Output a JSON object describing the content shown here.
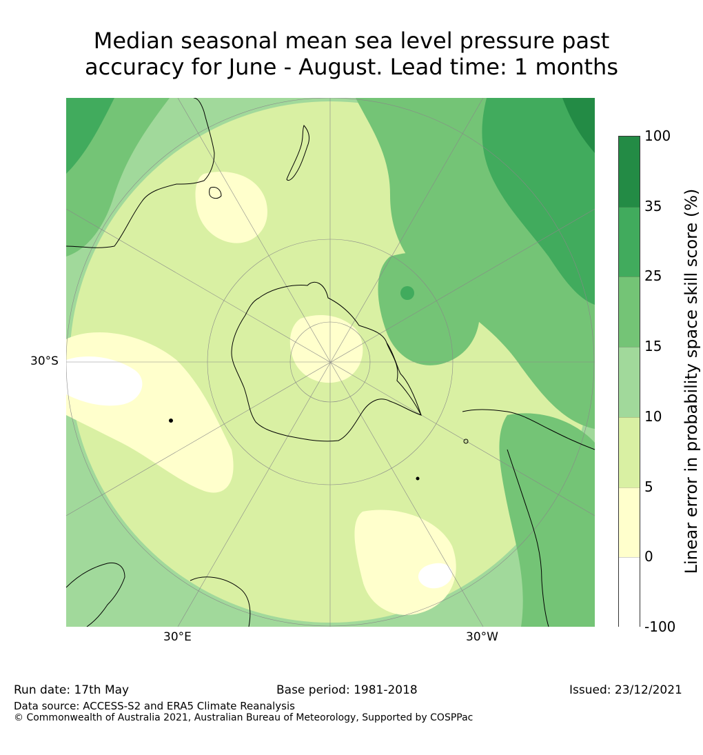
{
  "title": {
    "line1": "Median seasonal mean sea level pressure past",
    "line2": "accuracy for June - August. Lead time: 1 months"
  },
  "map": {
    "projection": "south polar stereographic",
    "lat_labels": [
      "30°S"
    ],
    "lon_labels": [
      "30°E",
      "30°W"
    ]
  },
  "colorbar": {
    "title": "Linear error in probability space skill score (%)",
    "ticks": [
      "100",
      "35",
      "25",
      "15",
      "10",
      "5",
      "0",
      "-100"
    ],
    "bins": [
      {
        "range": "35 to 100",
        "color": "#238b45"
      },
      {
        "range": "25 to 35",
        "color": "#41ab5d"
      },
      {
        "range": "15 to 25",
        "color": "#74c476"
      },
      {
        "range": "10 to 15",
        "color": "#a1d99b"
      },
      {
        "range": "5 to 10",
        "color": "#d9f0a3"
      },
      {
        "range": "0 to 5",
        "color": "#ffffcc"
      },
      {
        "range": "-100 to 0",
        "color": "#ffffff"
      }
    ]
  },
  "footer": {
    "run_date": "Run date: 17th May",
    "base_period": "Base period: 1981-2018",
    "issued": "Issued: 23/12/2021",
    "data_source": "Data source: ACCESS-S2 and ERA5 Climate Reanalysis",
    "copyright": "© Commonwealth of Australia 2021, Australian Bureau of Meteorology, Supported by COSPPac"
  }
}
